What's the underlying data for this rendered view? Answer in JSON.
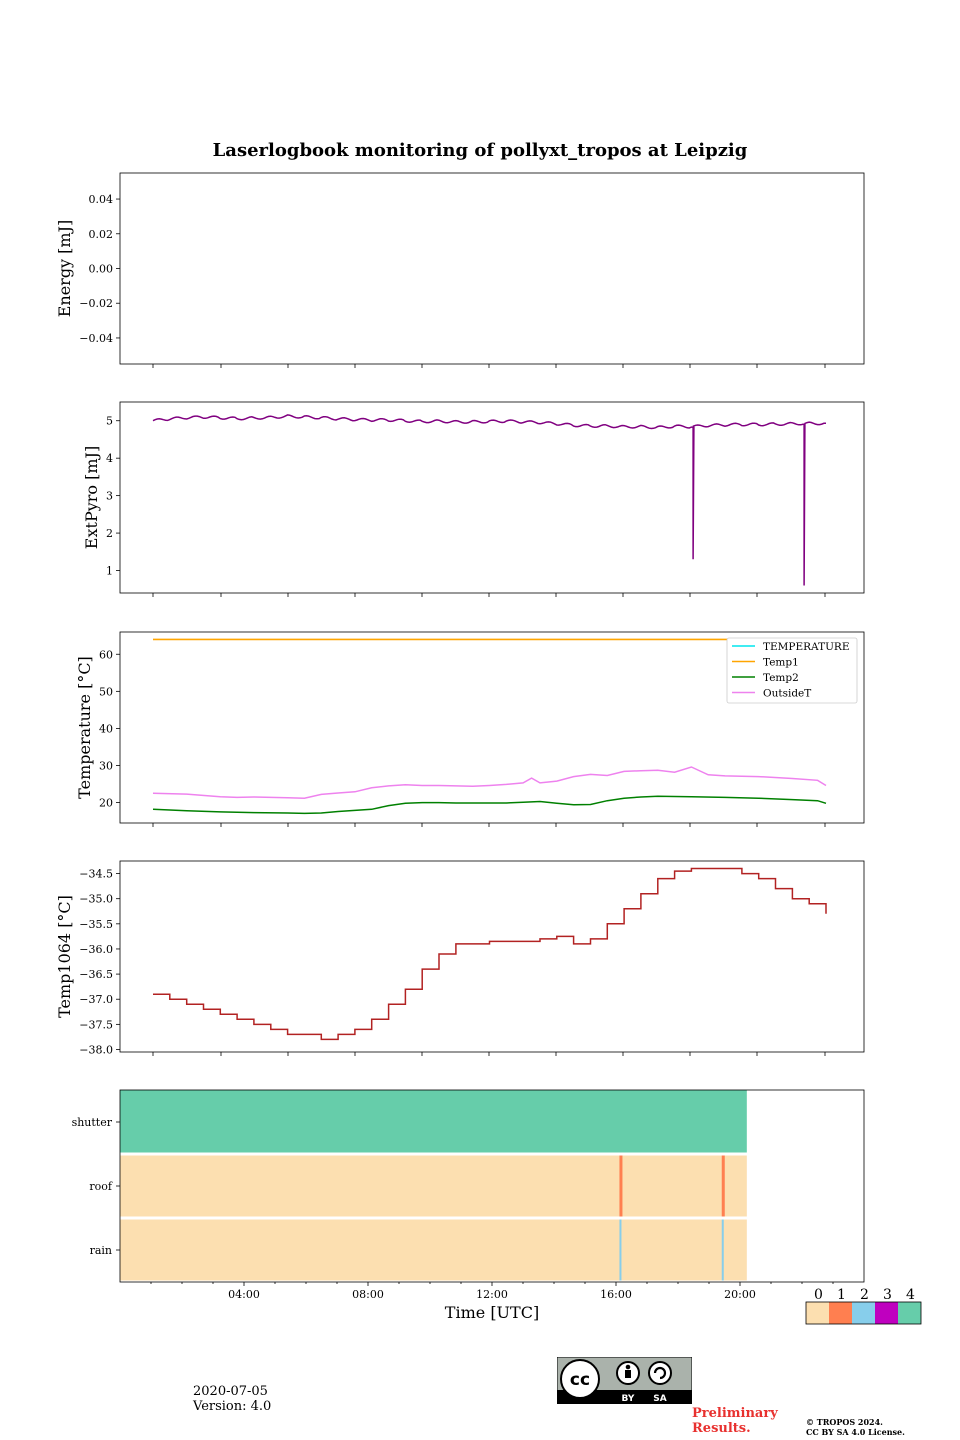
{
  "title": "Laserlogbook monitoring of pollyxt_tropos at Leipzig",
  "footer": {
    "date": "2020-07-05",
    "version": "Version: 4.0",
    "preliminary_line1": "Preliminary",
    "preliminary_line2": "Results.",
    "copyright_line1": "© TROPOS 2024.",
    "copyright_line2": "CC BY SA 4.0 License.",
    "license_by": "BY",
    "license_sa": "SA"
  },
  "colors": {
    "extpyro": "#800080",
    "temperature": "#00e5ee",
    "temp1": "#ffa500",
    "temp2": "#008000",
    "outsideT": "#ee82ee",
    "temp1064": "#b22222",
    "status": [
      "#fcdfb0",
      "#ff7f50",
      "#87ceeb",
      "#bf00bf",
      "#66cdaa"
    ]
  },
  "chart_data": [
    {
      "type": "line",
      "ylabel": "Energy [mJ]",
      "ylim": [
        -0.055,
        0.055
      ],
      "yticks": [
        0.04,
        0.02,
        0.0,
        -0.02,
        -0.04
      ],
      "ytick_labels": [
        "0.04",
        "0.02",
        "0.00",
        "−0.02",
        "−0.04"
      ],
      "series": []
    },
    {
      "type": "line",
      "ylabel": "ExtPyro [mJ]",
      "ylim": [
        0.4,
        5.5
      ],
      "yticks": [
        1,
        2,
        3,
        4,
        5
      ],
      "ytick_labels": [
        "1",
        "2",
        "3",
        "4",
        "5"
      ],
      "series": [
        {
          "name": "ExtPyro",
          "x_hours": [
            0.0,
            1.0,
            2.0,
            3.0,
            4.0,
            5.0,
            6.0,
            7.0,
            8.0,
            9.0,
            10.0,
            11.0,
            12.0,
            13.0,
            14.0,
            15.0,
            16.0,
            17.0,
            18.0,
            19.0,
            20.0,
            21.0,
            22.0,
            23.0,
            24.0,
            25.0,
            26.0,
            27.0,
            28.0,
            29.0,
            30.0,
            31.0,
            32.0,
            33.0,
            34.0,
            35.0,
            36.0,
            37.0,
            38.0,
            39.0,
            40.0
          ],
          "values": [
            5.0,
            5.05,
            5.08,
            5.1,
            5.08,
            5.06,
            5.07,
            5.09,
            5.12,
            5.1,
            5.08,
            5.05,
            5.03,
            5.02,
            5.02,
            5.0,
            4.98,
            4.99,
            4.97,
            4.97,
            4.98,
            4.99,
            4.97,
            4.95,
            4.92,
            4.88,
            4.86,
            4.86,
            4.84,
            4.84,
            4.82,
            4.85,
            4.84,
            4.87,
            4.89,
            4.9,
            4.9,
            4.91,
            4.92,
            4.93,
            4.93
          ],
          "spikes": [
            {
              "x_hours": 32.1,
              "value": 1.3
            },
            {
              "x_hours": 38.7,
              "value": 0.6
            }
          ]
        }
      ]
    },
    {
      "type": "line",
      "ylabel": "Temperature [°C]",
      "ylim": [
        14.5,
        66
      ],
      "yticks": [
        20,
        30,
        40,
        50,
        60
      ],
      "ytick_labels": [
        "20",
        "30",
        "40",
        "50",
        "60"
      ],
      "legend": [
        "TEMPERATURE",
        "Temp1",
        "Temp2",
        "OutsideT"
      ],
      "legend_location": "top-right",
      "series": [
        {
          "name": "Temp1",
          "x_hours": [
            0,
            40
          ],
          "values": [
            64,
            64
          ]
        },
        {
          "name": "Temp2",
          "x_hours": [
            0,
            2,
            4,
            6,
            8,
            9,
            10,
            11,
            12,
            13,
            14,
            15,
            16,
            17,
            18,
            19,
            20,
            21,
            22,
            23,
            24,
            25,
            26,
            27,
            28,
            29,
            30,
            32,
            34,
            36,
            38,
            39.5,
            40
          ],
          "values": [
            18.2,
            17.8,
            17.5,
            17.3,
            17.2,
            17.1,
            17.2,
            17.6,
            17.9,
            18.2,
            19.2,
            19.8,
            20.0,
            20.0,
            19.9,
            19.9,
            19.9,
            19.9,
            20.1,
            20.3,
            19.8,
            19.4,
            19.5,
            20.5,
            21.2,
            21.5,
            21.7,
            21.6,
            21.4,
            21.2,
            20.8,
            20.5,
            19.8
          ]
        },
        {
          "name": "OutsideT",
          "x_hours": [
            0,
            2,
            4,
            5,
            6,
            8,
            9,
            10,
            11,
            12,
            13,
            14,
            15,
            16,
            17,
            18,
            19,
            20,
            21,
            22,
            22.5,
            23,
            24,
            25,
            26,
            27,
            28,
            29,
            30,
            31,
            32,
            33,
            34,
            36,
            38,
            39.5,
            40
          ],
          "values": [
            22.5,
            22.3,
            21.6,
            21.4,
            21.5,
            21.3,
            21.2,
            22.2,
            22.6,
            22.9,
            24.0,
            24.5,
            24.8,
            24.6,
            24.6,
            24.5,
            24.4,
            24.6,
            24.9,
            25.3,
            26.6,
            25.3,
            25.8,
            27.0,
            27.6,
            27.3,
            28.4,
            28.6,
            28.7,
            28.2,
            29.6,
            27.5,
            27.2,
            27.0,
            26.5,
            26.0,
            24.6
          ]
        }
      ]
    },
    {
      "type": "line",
      "ylabel": "Temp1064 [°C]",
      "ylim": [
        -38.05,
        -34.25
      ],
      "yticks": [
        -34.5,
        -35.0,
        -35.5,
        -36.0,
        -36.5,
        -37.0,
        -37.5,
        -38.0
      ],
      "ytick_labels": [
        "−34.5",
        "−35.0",
        "−35.5",
        "−36.0",
        "−36.5",
        "−37.0",
        "−37.5",
        "−38.0"
      ],
      "series": [
        {
          "name": "Temp1064",
          "x_hours": [
            0,
            1,
            2,
            3,
            4,
            5,
            6,
            7,
            8,
            9,
            10,
            11,
            12,
            13,
            14,
            15,
            16,
            17,
            18,
            19,
            20,
            21,
            22,
            23,
            24,
            25,
            26,
            27,
            28,
            29,
            30,
            31,
            32,
            33,
            34,
            35,
            36,
            37,
            38,
            39,
            40
          ],
          "values": [
            -36.9,
            -37.0,
            -37.1,
            -37.2,
            -37.3,
            -37.4,
            -37.5,
            -37.6,
            -37.7,
            -37.7,
            -37.8,
            -37.7,
            -37.6,
            -37.4,
            -37.1,
            -36.8,
            -36.4,
            -36.1,
            -35.9,
            -35.9,
            -35.85,
            -35.85,
            -35.85,
            -35.8,
            -35.75,
            -35.9,
            -35.8,
            -35.5,
            -35.2,
            -34.9,
            -34.6,
            -34.45,
            -34.4,
            -34.4,
            -34.4,
            -34.5,
            -34.6,
            -34.8,
            -35.0,
            -35.1,
            -35.3
          ]
        }
      ]
    },
    {
      "type": "heatmap",
      "rows": [
        "shutter",
        "roof",
        "rain"
      ],
      "xlabel": "Time [UTC]",
      "xlim_hours": [
        0,
        24
      ],
      "xticks": [
        "04:00",
        "08:00",
        "12:00",
        "16:00",
        "20:00"
      ],
      "xtick_hours": [
        4,
        8,
        12,
        16,
        20
      ],
      "data_end_hours": 20.22,
      "base_values": [
        4,
        0,
        0
      ],
      "events": [
        {
          "row": "roof",
          "x_hours": 16.15,
          "value": 1
        },
        {
          "row": "roof",
          "x_hours": 19.45,
          "value": 1
        },
        {
          "row": "rain",
          "x_hours": 16.15,
          "value": 2
        },
        {
          "row": "rain",
          "x_hours": 19.45,
          "value": 2
        }
      ],
      "colorbar": {
        "labels": [
          "0",
          "1",
          "2",
          "3",
          "4"
        ]
      }
    }
  ]
}
